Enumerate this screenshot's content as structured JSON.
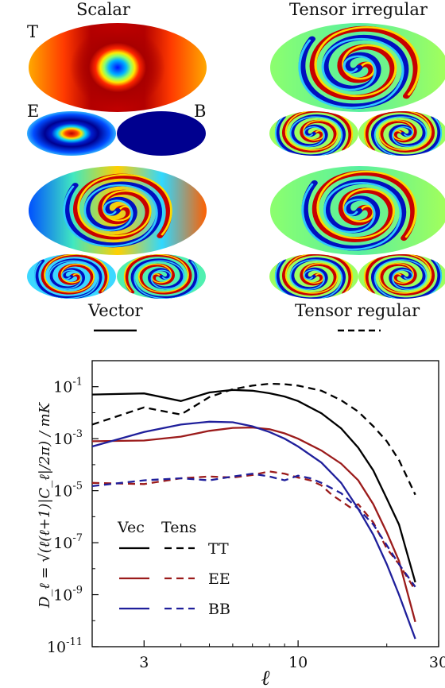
{
  "panels": {
    "scalar_title": "Scalar",
    "tensor_irregular_title": "Tensor irregular",
    "vector_title": "Vector",
    "tensor_regular_title": "Tensor regular",
    "T_label": "T",
    "E_label": "E",
    "B_label": "B"
  },
  "colors": {
    "vec_tt": "#000000",
    "vec_ee": "#9b1b1b",
    "vec_bb": "#1f1f9b",
    "jet_dark_blue": "#00008f",
    "jet_red": "#d11a00"
  },
  "chart_data": {
    "type": "line",
    "scale": {
      "x": "log",
      "y": "log"
    },
    "xlim": [
      2,
      30
    ],
    "ylim": [
      1e-11,
      1
    ],
    "xticks": [
      3,
      10,
      30
    ],
    "xtick_labels": [
      "3",
      "10",
      "30"
    ],
    "yticks": [
      0.1,
      0.001,
      1e-05,
      1e-07,
      1e-09,
      1e-11
    ],
    "ytick_bases": [
      "10",
      "10",
      "10",
      "10",
      "10",
      "10"
    ],
    "ytick_exps": [
      "-1",
      "-3",
      "-5",
      "-7",
      "-9",
      "-11"
    ],
    "xlabel": "ℓ",
    "ylabel": "D_ℓ = √(ℓ(ℓ+1)|C_ℓ|/2π) / mK",
    "legend": {
      "position": "lower-left",
      "header_vec": "Vec",
      "header_tens": "Tens",
      "rows": [
        "TT",
        "EE",
        "BB"
      ]
    },
    "series": [
      {
        "name": "TT",
        "group": "Vec",
        "style": "solid",
        "color": "#000000",
        "x": [
          2,
          3,
          4,
          5,
          6,
          7,
          8,
          9,
          10,
          12,
          14,
          16,
          18,
          20,
          22,
          25
        ],
        "y": [
          0.05,
          0.055,
          0.028,
          0.06,
          0.075,
          0.07,
          0.056,
          0.042,
          0.028,
          0.0095,
          0.0025,
          0.00045,
          6e-05,
          5e-06,
          5e-07,
          3e-09
        ]
      },
      {
        "name": "TT",
        "group": "Tens",
        "style": "dashed",
        "color": "#000000",
        "x": [
          2,
          3,
          4,
          5,
          6,
          7,
          8,
          9,
          10,
          12,
          14,
          16,
          18,
          20,
          22,
          25
        ],
        "y": [
          0.0035,
          0.016,
          0.0085,
          0.04,
          0.08,
          0.11,
          0.13,
          0.125,
          0.11,
          0.07,
          0.03,
          0.011,
          0.003,
          0.0008,
          0.00015,
          7e-06
        ]
      },
      {
        "name": "EE",
        "group": "Vec",
        "style": "solid",
        "color": "#9b1b1b",
        "x": [
          2,
          3,
          4,
          5,
          6,
          7,
          8,
          9,
          10,
          12,
          14,
          16,
          18,
          20,
          22,
          25
        ],
        "y": [
          0.0008,
          0.00085,
          0.0012,
          0.002,
          0.0026,
          0.0027,
          0.0023,
          0.0016,
          0.001,
          0.00035,
          0.00011,
          2.5e-05,
          3e-06,
          2.5e-07,
          2e-08,
          9e-11
        ]
      },
      {
        "name": "EE",
        "group": "Tens",
        "style": "dashed",
        "color": "#9b1b1b",
        "x": [
          2,
          3,
          4,
          5,
          6,
          7,
          8,
          9,
          10,
          11,
          12,
          13,
          14,
          15,
          16,
          18,
          20,
          22,
          25
        ],
        "y": [
          2e-05,
          1.8e-05,
          3e-05,
          3.5e-05,
          3.2e-05,
          4e-05,
          5.5e-05,
          4.5e-05,
          3.2e-05,
          2.5e-05,
          1.6e-05,
          7e-06,
          4e-06,
          2.3e-06,
          3e-06,
          6e-07,
          6e-08,
          1.5e-08,
          1.5e-09
        ]
      },
      {
        "name": "BB",
        "group": "Vec",
        "style": "solid",
        "color": "#1f1f9b",
        "x": [
          2,
          3,
          4,
          5,
          6,
          7,
          8,
          9,
          10,
          12,
          14,
          16,
          18,
          20,
          22,
          25
        ],
        "y": [
          0.0005,
          0.0018,
          0.0035,
          0.0045,
          0.0043,
          0.003,
          0.0018,
          0.001,
          0.0005,
          0.00012,
          2e-05,
          2e-06,
          2e-07,
          1.5e-08,
          1e-09,
          2e-11
        ]
      },
      {
        "name": "BB",
        "group": "Tens",
        "style": "dashed",
        "color": "#1f1f9b",
        "x": [
          2,
          3,
          4,
          5,
          6,
          7,
          8,
          9,
          10,
          11,
          12,
          14,
          16,
          18,
          20,
          22,
          25
        ],
        "y": [
          1.5e-05,
          2.5e-05,
          3e-05,
          2.5e-05,
          3.5e-05,
          4.5e-05,
          3.5e-05,
          2.5e-05,
          3.8e-05,
          3e-05,
          2e-05,
          8e-06,
          2e-06,
          5e-07,
          8e-08,
          1.5e-08,
          2e-09
        ]
      }
    ]
  }
}
